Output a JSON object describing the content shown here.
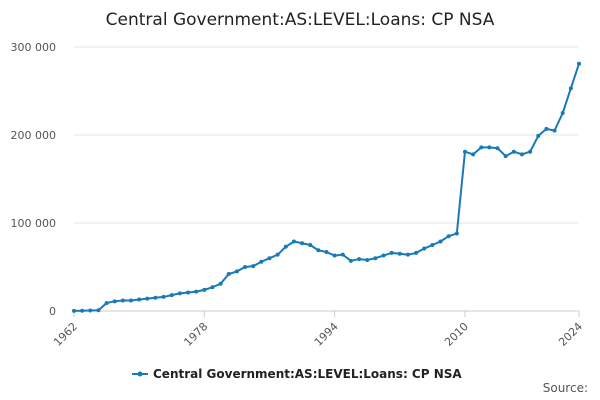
{
  "chart_data": {
    "type": "line",
    "title": "Central Government:AS:LEVEL:Loans: CP NSA",
    "x": [
      1962,
      1963,
      1964,
      1965,
      1966,
      1967,
      1968,
      1969,
      1970,
      1971,
      1972,
      1973,
      1974,
      1975,
      1976,
      1977,
      1978,
      1979,
      1980,
      1981,
      1982,
      1983,
      1984,
      1985,
      1986,
      1987,
      1988,
      1989,
      1990,
      1991,
      1992,
      1993,
      1994,
      1995,
      1996,
      1997,
      1998,
      1999,
      2000,
      2001,
      2002,
      2003,
      2004,
      2005,
      2006,
      2007,
      2008,
      2009,
      2010,
      2011,
      2012,
      2013,
      2014,
      2015,
      2016,
      2017,
      2018,
      2019,
      2020,
      2021,
      2022,
      2023,
      2024
    ],
    "series": [
      {
        "name": "Central Government:AS:LEVEL:Loans: CP NSA",
        "color": "#1a7ab5",
        "values": [
          200,
          300,
          500,
          800,
          9000,
          11000,
          12000,
          12000,
          13000,
          14000,
          15000,
          16000,
          18000,
          20000,
          21000,
          22000,
          24000,
          27000,
          31000,
          42000,
          45000,
          50000,
          51000,
          56000,
          60000,
          64000,
          73000,
          79000,
          77000,
          75000,
          69000,
          67000,
          63000,
          64000,
          57000,
          59000,
          58000,
          60000,
          63000,
          66000,
          65000,
          64000,
          66000,
          71000,
          75000,
          79000,
          85000,
          88000,
          181000,
          178000,
          186000,
          186000,
          185000,
          176000,
          181000,
          178000,
          181000,
          199000,
          207000,
          205000,
          225000,
          253000,
          281000
        ]
      }
    ],
    "xlim": [
      1962,
      2024
    ],
    "xticks": [
      1962,
      1978,
      1994,
      2010,
      2024
    ],
    "ylim": [
      0,
      305000
    ],
    "yticks": [
      0,
      {
        "value": 100000,
        "label": "100 000"
      },
      {
        "value": 200000,
        "label": "200 000"
      },
      {
        "value": 300000,
        "label": "300 000"
      }
    ],
    "grid": true,
    "legend": "bottom",
    "source": "Source:"
  }
}
